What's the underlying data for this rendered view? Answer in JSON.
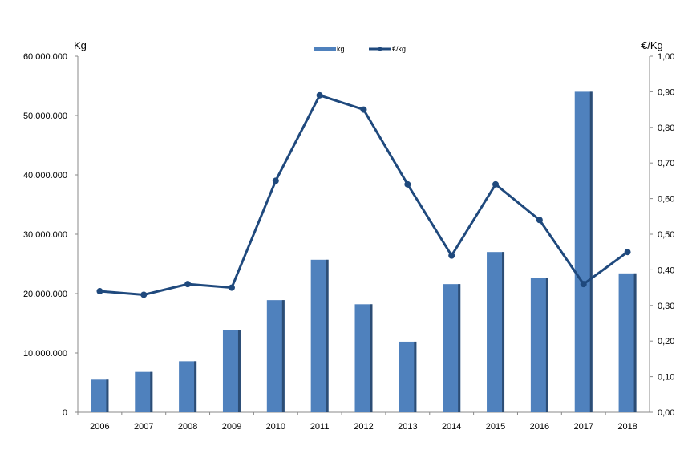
{
  "chart_data": {
    "type": "bar+line",
    "categories": [
      "2006",
      "2007",
      "2008",
      "2009",
      "2010",
      "2011",
      "2012",
      "2013",
      "2014",
      "2015",
      "2016",
      "2017",
      "2018"
    ],
    "series": [
      {
        "name": "kg",
        "type": "bar",
        "axis": "left",
        "values": [
          5500000,
          6800000,
          8600000,
          13900000,
          18900000,
          25700000,
          18200000,
          11900000,
          21600000,
          27000000,
          22600000,
          54000000,
          23400000
        ]
      },
      {
        "name": "€/kg",
        "type": "line",
        "axis": "right",
        "values": [
          0.34,
          0.33,
          0.36,
          0.35,
          0.65,
          0.89,
          0.85,
          0.64,
          0.44,
          0.64,
          0.54,
          0.36,
          0.45
        ]
      }
    ],
    "ylabel": "Kg",
    "y2label": "€/Kg",
    "ylim": [
      0,
      60000000
    ],
    "y2lim": [
      0,
      1
    ],
    "yticks": [
      "0",
      "10.000.000",
      "20.000.000",
      "30.000.000",
      "40.000.000",
      "50.000.000",
      "60.000.000"
    ],
    "y2ticks": [
      "0,00",
      "0,10",
      "0,20",
      "0,30",
      "0,40",
      "0,50",
      "0,60",
      "0,70",
      "0,80",
      "0,90",
      "1,00"
    ],
    "legend_position": "top-center",
    "colors": {
      "bar": "#4f81bd",
      "line": "#1f497d"
    }
  }
}
